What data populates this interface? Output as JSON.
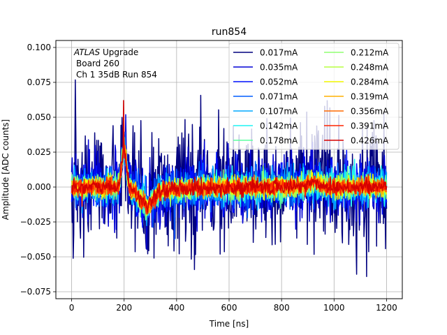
{
  "chart_data": {
    "type": "line",
    "title": "run854",
    "xlabel": "Time [ns]",
    "ylabel": "Amplitude [ADC counts]",
    "xlim": [
      -60,
      1260
    ],
    "ylim": [
      -0.08,
      0.105
    ],
    "xticks": [
      0,
      200,
      400,
      600,
      800,
      1000,
      1200
    ],
    "yticks": [
      -0.075,
      -0.05,
      -0.025,
      0.0,
      0.025,
      0.05,
      0.075,
      0.1
    ],
    "xtick_labels": [
      "0",
      "200",
      "400",
      "600",
      "800",
      "1000",
      "1200"
    ],
    "ytick_labels": [
      "−0.075",
      "−0.050",
      "−0.025",
      "0.000",
      "0.025",
      "0.050",
      "0.075",
      "0.100"
    ],
    "grid": true,
    "legend_position": "top-right",
    "legend_columns": 2,
    "annotation": {
      "line1_italic": "ATLAS",
      "line1_rest": " Upgrade",
      "line2": "Board 260",
      "line3": "Ch 1 35dB  Run 854"
    },
    "x_range": [
      0,
      1200
    ],
    "sample_step_ns": 2,
    "pulse": {
      "peak_time": 200,
      "peak_amplitude": 0.027,
      "undershoot_time": 280,
      "undershoot_amplitude": -0.011,
      "late_bump_time": 920,
      "late_bump_amplitude": 0.003,
      "spike_time": 198,
      "spike_amplitude": 0.062
    },
    "series": [
      {
        "name": "0.017mA",
        "color": "#00007f",
        "noise": 0.022
      },
      {
        "name": "0.035mA",
        "color": "#0000d5",
        "noise": 0.012
      },
      {
        "name": "0.052mA",
        "color": "#0011ff",
        "noise": 0.009
      },
      {
        "name": "0.071mA",
        "color": "#005dff",
        "noise": 0.0075
      },
      {
        "name": "0.107mA",
        "color": "#00a9ff",
        "noise": 0.0062
      },
      {
        "name": "0.142mA",
        "color": "#1ff4f4",
        "noise": 0.0052
      },
      {
        "name": "0.178mA",
        "color": "#5dffa0",
        "noise": 0.0045
      },
      {
        "name": "0.212mA",
        "color": "#8fff70",
        "noise": 0.004
      },
      {
        "name": "0.248mA",
        "color": "#b7ff40",
        "noise": 0.0036
      },
      {
        "name": "0.284mA",
        "color": "#f4f800",
        "noise": 0.0033
      },
      {
        "name": "0.319mA",
        "color": "#ffb100",
        "noise": 0.0031
      },
      {
        "name": "0.356mA",
        "color": "#ff6a00",
        "noise": 0.003
      },
      {
        "name": "0.391mA",
        "color": "#ff2400",
        "noise": 0.0029
      },
      {
        "name": "0.426mA",
        "color": "#d50000",
        "noise": 0.0028
      }
    ]
  }
}
